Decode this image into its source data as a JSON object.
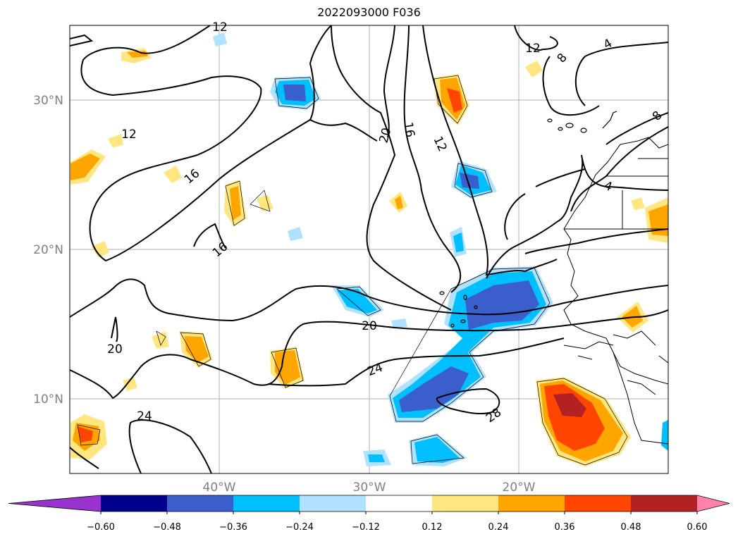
{
  "title": "2022093000 F036",
  "axes": {
    "lat_labels": [
      "30°N",
      "20°N",
      "10°N"
    ],
    "lon_labels": [
      "40°W",
      "30°W",
      "20°W"
    ]
  },
  "contour_labels": [
    "12",
    "12",
    "16",
    "16",
    "20",
    "20",
    "16",
    "12",
    "12",
    "8",
    "4",
    "8",
    "4",
    "20",
    "24",
    "24",
    "28"
  ],
  "colorbar": {
    "ticks": [
      "−0.60",
      "−0.48",
      "−0.36",
      "−0.24",
      "−0.12",
      "0.12",
      "0.24",
      "0.36",
      "0.48",
      "0.60"
    ],
    "colors": [
      "#9a32cd",
      "#00008b",
      "#3a5fcd",
      "#00bfff",
      "#b0e2ff",
      "#ffffff",
      "#ffe680",
      "#ffa500",
      "#ff4500",
      "#b22222",
      "#ff82ab"
    ]
  }
}
